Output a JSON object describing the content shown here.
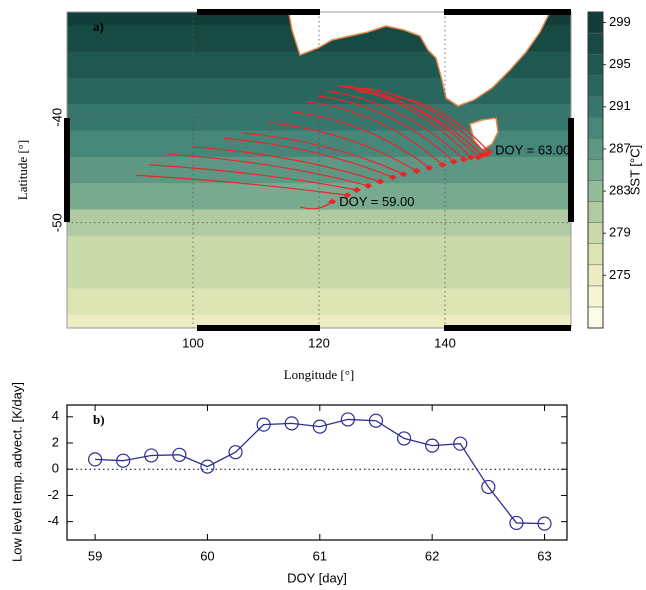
{
  "chart_data": [
    {
      "type": "trajectory_map",
      "panel_label": "a)",
      "x_label": "Longitude [°]",
      "y_label": "Latitude [°]",
      "xlim": [
        80,
        160
      ],
      "ylim": [
        -60,
        -30
      ],
      "xticks": [
        100,
        120,
        140
      ],
      "yticks": [
        -40,
        -50
      ],
      "grid": true,
      "colorbar": {
        "label": "SST [°C]",
        "lim": [
          270,
          300
        ],
        "levels": [
          270,
          272,
          274,
          276,
          278,
          280,
          282,
          284,
          286,
          288,
          290,
          292,
          294,
          296,
          298,
          300
        ],
        "colors": [
          "#fcfce6",
          "#f6f4d2",
          "#ecedc2",
          "#dde4b4",
          "#c9d9aa",
          "#b0cba1",
          "#94bb98",
          "#78aa8f",
          "#5e9885",
          "#47877a",
          "#36766c",
          "#29665e",
          "#1f5850",
          "#174a43",
          "#113e38"
        ],
        "ticks": [
          275,
          279,
          283,
          287,
          291,
          295,
          299
        ]
      },
      "field": {
        "lat": [
          -30,
          -32.5,
          -35,
          -37.5,
          -40,
          -42.5,
          -45,
          -47.5,
          -50,
          -52.5,
          -55,
          -57.5,
          -60
        ],
        "sst": [
          298.5,
          297,
          295.5,
          293,
          290.5,
          288.5,
          286.5,
          284,
          281.5,
          279.5,
          278,
          276,
          274
        ]
      },
      "trajectories": {
        "color": "#e8262a",
        "end_lon": [
          122.1,
          124.5,
          126.0,
          127.8,
          129.7,
          131.7,
          133.4,
          135.5,
          137.5,
          139.6,
          141.4,
          143.0,
          144.1,
          145.3,
          145.9,
          146.6,
          147.0
        ],
        "end_lat": [
          -48.0,
          -47.4,
          -46.9,
          -46.5,
          -46.1,
          -45.7,
          -45.4,
          -45.1,
          -44.8,
          -44.5,
          -44.2,
          -44.0,
          -43.8,
          -43.8,
          -43.6,
          -43.5,
          -43.3
        ],
        "start_lon": [
          117,
          91,
          93,
          96,
          100,
          105,
          108,
          112,
          116,
          118,
          120,
          121,
          123,
          124,
          126,
          127,
          132
        ],
        "start_lat": [
          -48.5,
          -45.5,
          -44.5,
          -43.5,
          -42.8,
          -42,
          -41.5,
          -40.5,
          -39.5,
          -38.5,
          -38,
          -37.5,
          -37,
          -37,
          -37.5,
          -37.2,
          -38
        ]
      },
      "annotations": [
        "DOY = 59.00",
        "DOY = 63.00"
      ]
    },
    {
      "type": "line",
      "panel_label": "b)",
      "x_label": "DOY [day]",
      "y_label": "Low level temp. advect. [K/day]",
      "x": [
        59,
        59.25,
        59.5,
        59.75,
        60,
        60.25,
        60.5,
        60.75,
        61,
        61.25,
        61.5,
        61.75,
        62,
        62.25,
        62.5,
        62.75,
        63
      ],
      "values": [
        0.75,
        0.65,
        1.05,
        1.1,
        0.2,
        1.3,
        3.4,
        3.5,
        3.25,
        3.8,
        3.7,
        2.35,
        1.8,
        1.95,
        -1.35,
        -4.1,
        -4.15
      ],
      "color": "#2b2f8f",
      "xlim": [
        58.75,
        63.2
      ],
      "ylim": [
        -5.4,
        4.9
      ],
      "xticks": [
        59,
        60,
        61,
        62,
        63
      ],
      "yticks": [
        4,
        2,
        0,
        -2,
        -4
      ],
      "zero_line": true
    }
  ]
}
